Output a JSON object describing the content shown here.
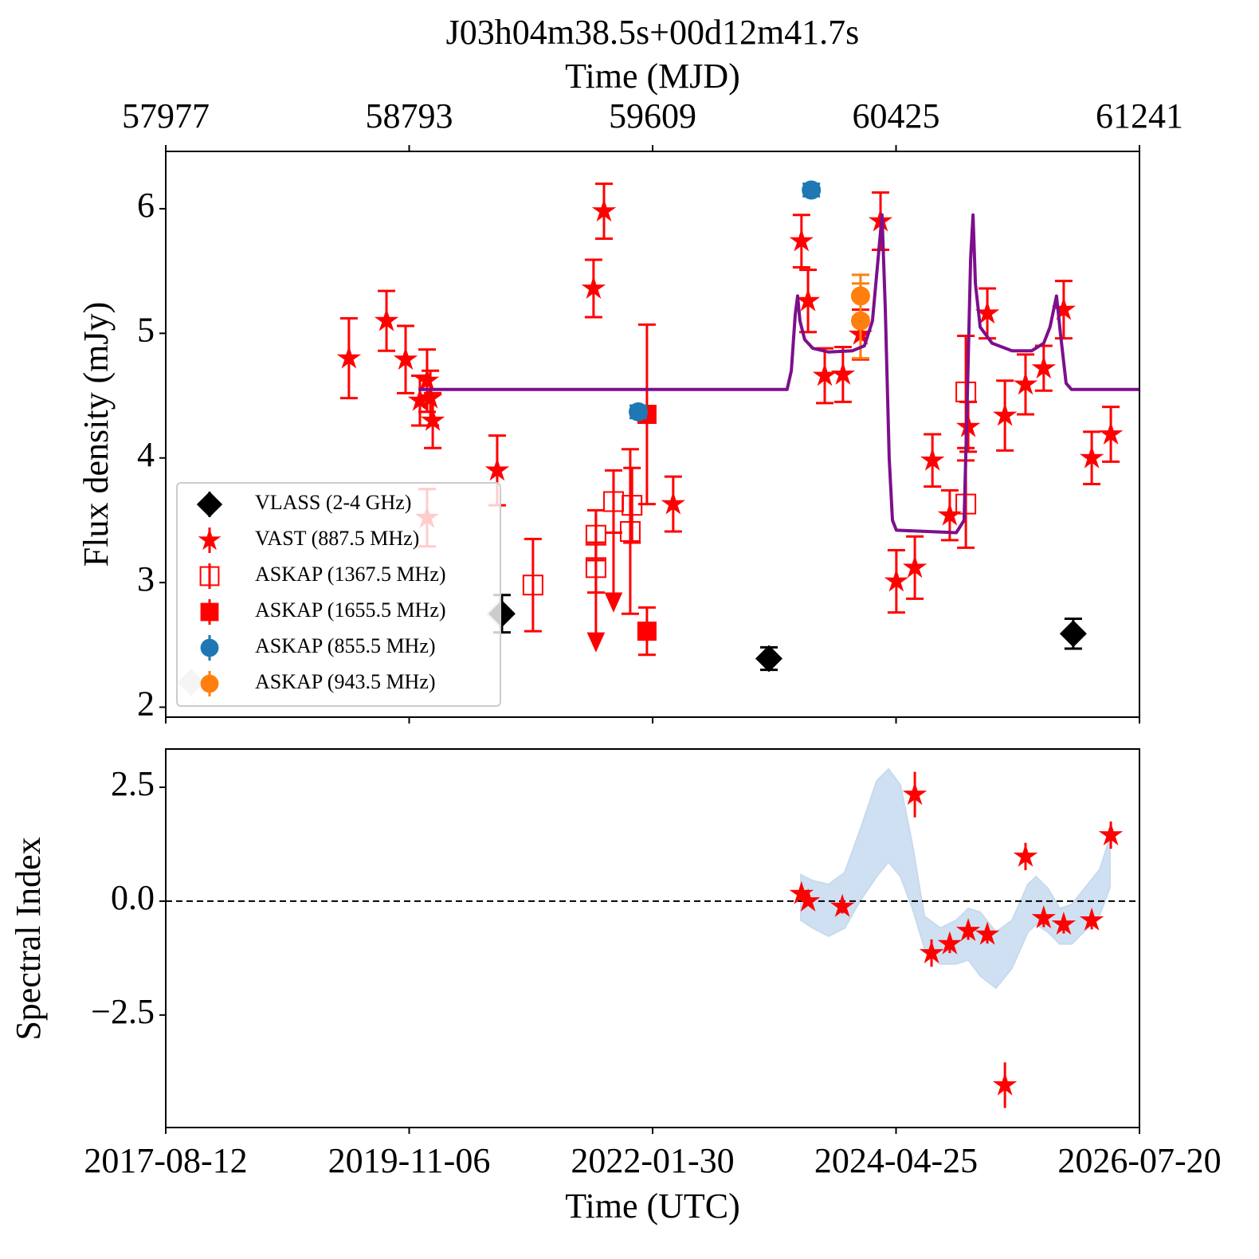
{
  "chart_data": [
    {
      "type": "scatter",
      "title": "J03h04m38.5s+00d12m41.7s",
      "x2label": "Time (MJD)",
      "ylabel": "Flux density (mJy)",
      "xlim": [
        57977,
        61241
      ],
      "xticks": [
        57977,
        58793,
        59609,
        60425,
        61241
      ],
      "ylim": [
        1.92,
        6.46
      ],
      "yticks": [
        2,
        3,
        4,
        5,
        6
      ],
      "legend": "lower left",
      "error_caps": true,
      "series": [
        {
          "color": "#cccccc",
          "marker": "diamond",
          "x": [
            58062,
            59095
          ],
          "values": [
            2.2,
            2.75
          ]
        },
        {
          "name": "VLASS (2-4 GHz)",
          "color": "#000000",
          "marker": "diamond",
          "x": [
            59104,
            59999,
            61019
          ],
          "values": [
            2.75,
            2.39,
            2.59
          ],
          "errors": [
            0.15,
            0.09,
            0.12
          ]
        },
        {
          "name": "VAST (887.5 MHz)",
          "color": "#ff0000",
          "marker": "star",
          "x": [
            58591,
            58717,
            58781,
            58829,
            58853,
            58864,
            58872,
            58853,
            59088,
            59411,
            59446,
            59678,
            60108,
            60130,
            60186,
            60247,
            60306,
            60373,
            60426,
            60488,
            60547,
            60605,
            60667,
            60731,
            60790,
            60859,
            60920,
            60987,
            61081,
            61145
          ],
          "values": [
            4.8,
            5.1,
            4.79,
            4.46,
            4.62,
            4.48,
            4.3,
            3.52,
            3.9,
            5.36,
            5.98,
            3.63,
            5.74,
            5.26,
            4.66,
            4.67,
            4.99,
            5.9,
            3.01,
            3.12,
            3.98,
            3.54,
            4.25,
            5.16,
            4.34,
            4.59,
            4.72,
            5.19,
            4.0,
            4.19
          ],
          "errors": [
            0.32,
            0.24,
            0.27,
            0.2,
            0.25,
            0.22,
            0.22,
            0.23,
            0.28,
            0.23,
            0.22,
            0.22,
            0.21,
            0.25,
            0.22,
            0.22,
            0.2,
            0.23,
            0.25,
            0.25,
            0.21,
            0.2,
            0.2,
            0.2,
            0.28,
            0.24,
            0.18,
            0.23,
            0.21,
            0.22
          ]
        },
        {
          "name": "ASKAP (1367.5 MHz)",
          "color": "#ff0000",
          "marker": "open-square",
          "x": [
            59208,
            59419,
            59419,
            59478,
            59540,
            59534,
            60659,
            60659
          ],
          "values": [
            2.98,
            3.38,
            3.12,
            3.65,
            3.62,
            3.41,
            4.53,
            3.63
          ],
          "errors": [
            0.37,
            0.2,
            0.2,
            0.25,
            0.3,
            0.66,
            0.45,
            0.35
          ],
          "upper_limits": {
            "x": [
              59419,
              59478
            ],
            "values": [
              3.55,
              3.87
            ]
          }
        },
        {
          "name": "ASKAP (1655.5 MHz)",
          "color": "#ff0000",
          "marker": "square",
          "x": [
            59590,
            59590
          ],
          "values": [
            4.35,
            2.61
          ],
          "errors": [
            0.72,
            0.19
          ]
        },
        {
          "name": "ASKAP (855.5 MHz)",
          "color": "#1f77b4",
          "marker": "circle",
          "x": [
            59561,
            60141
          ],
          "values": [
            4.37,
            6.15
          ],
          "errors": [
            0.05,
            0.05
          ]
        },
        {
          "name": "ASKAP (943.5 MHz)",
          "color": "#ff7f0e",
          "marker": "circle",
          "x": [
            60306,
            60306
          ],
          "values": [
            5.3,
            5.1
          ],
          "errors": [
            0.17,
            0.3
          ]
        }
      ],
      "model": {
        "color": "#7d0f8c",
        "x": [
          58824,
          60060,
          60074,
          60087,
          60095,
          60103,
          60119,
          60146,
          60199,
          60279,
          60319,
          60346,
          60365,
          60378,
          60389,
          60402,
          60413,
          60426,
          60627,
          60653,
          60664,
          60675,
          60683,
          60691,
          60707,
          60747,
          60814,
          60880,
          60920,
          60941,
          60963,
          60976,
          60995,
          61013,
          61241
        ],
        "values": [
          4.55,
          4.55,
          4.7,
          5.15,
          5.3,
          5.1,
          4.95,
          4.88,
          4.85,
          4.86,
          4.9,
          5.1,
          5.6,
          5.95,
          5.2,
          4.0,
          3.5,
          3.42,
          3.4,
          3.5,
          4.5,
          5.6,
          5.95,
          5.4,
          5.05,
          4.92,
          4.86,
          4.86,
          4.92,
          5.05,
          5.3,
          5.0,
          4.6,
          4.55,
          4.55
        ]
      }
    },
    {
      "type": "scatter",
      "xlabel": "Time (UTC)",
      "ylabel": "Spectral Index",
      "xlim": [
        57977,
        61241
      ],
      "xticks": [
        {
          "value": 57977,
          "label": "2017-08-12"
        },
        {
          "value": 58793,
          "label": "2019-11-06"
        },
        {
          "value": 59609,
          "label": "2022-01-30"
        },
        {
          "value": 60425,
          "label": "2024-04-25"
        },
        {
          "value": 61241,
          "label": "2026-07-20"
        }
      ],
      "ylim": [
        -4.97,
        3.34
      ],
      "yticks": [
        {
          "value": -2.5,
          "label": "−2.5"
        },
        {
          "value": 0,
          "label": "0.0"
        },
        2.5
      ],
      "hline": 0,
      "error_caps": false,
      "band": {
        "color": "#c6dbee",
        "x": [
          60106,
          60146,
          60199,
          60253,
          60306,
          60360,
          60400,
          60440,
          60480,
          60520,
          60573,
          60627,
          60667,
          60707,
          60760,
          60814,
          60867,
          60894,
          60934,
          60974,
          61014,
          61068,
          61108,
          61142
        ],
        "upper": [
          0.58,
          0.45,
          0.37,
          0.63,
          1.59,
          2.64,
          2.9,
          2.55,
          1.24,
          -0.33,
          -0.59,
          -0.42,
          -0.16,
          -0.24,
          -0.68,
          -0.42,
          0.37,
          0.54,
          0.28,
          -0.16,
          -0.07,
          0.37,
          0.7,
          1.4
        ],
        "lower": [
          -0.42,
          -0.59,
          -0.77,
          -0.59,
          0.02,
          0.54,
          0.86,
          0.54,
          -0.16,
          -1.03,
          -1.38,
          -1.38,
          -1.29,
          -1.64,
          -1.91,
          -1.47,
          -0.68,
          -0.51,
          -0.68,
          -0.94,
          -0.94,
          -0.59,
          -0.3,
          0.3
        ]
      },
      "series": [
        {
          "color": "#ff0000",
          "marker": "star",
          "x": [
            60108,
            60130,
            60245,
            60488,
            60544,
            60605,
            60667,
            60731,
            60790,
            60859,
            60920,
            60987,
            61081,
            61145
          ],
          "values": [
            0.16,
            0.0,
            -0.12,
            2.34,
            -1.14,
            -0.94,
            -0.65,
            -0.73,
            -4.04,
            0.98,
            -0.37,
            -0.51,
            -0.42,
            1.45
          ],
          "errors": [
            0.1,
            0.1,
            0.15,
            0.5,
            0.3,
            0.2,
            0.2,
            0.2,
            0.5,
            0.3,
            0.2,
            0.2,
            0.2,
            0.3
          ]
        }
      ]
    }
  ]
}
